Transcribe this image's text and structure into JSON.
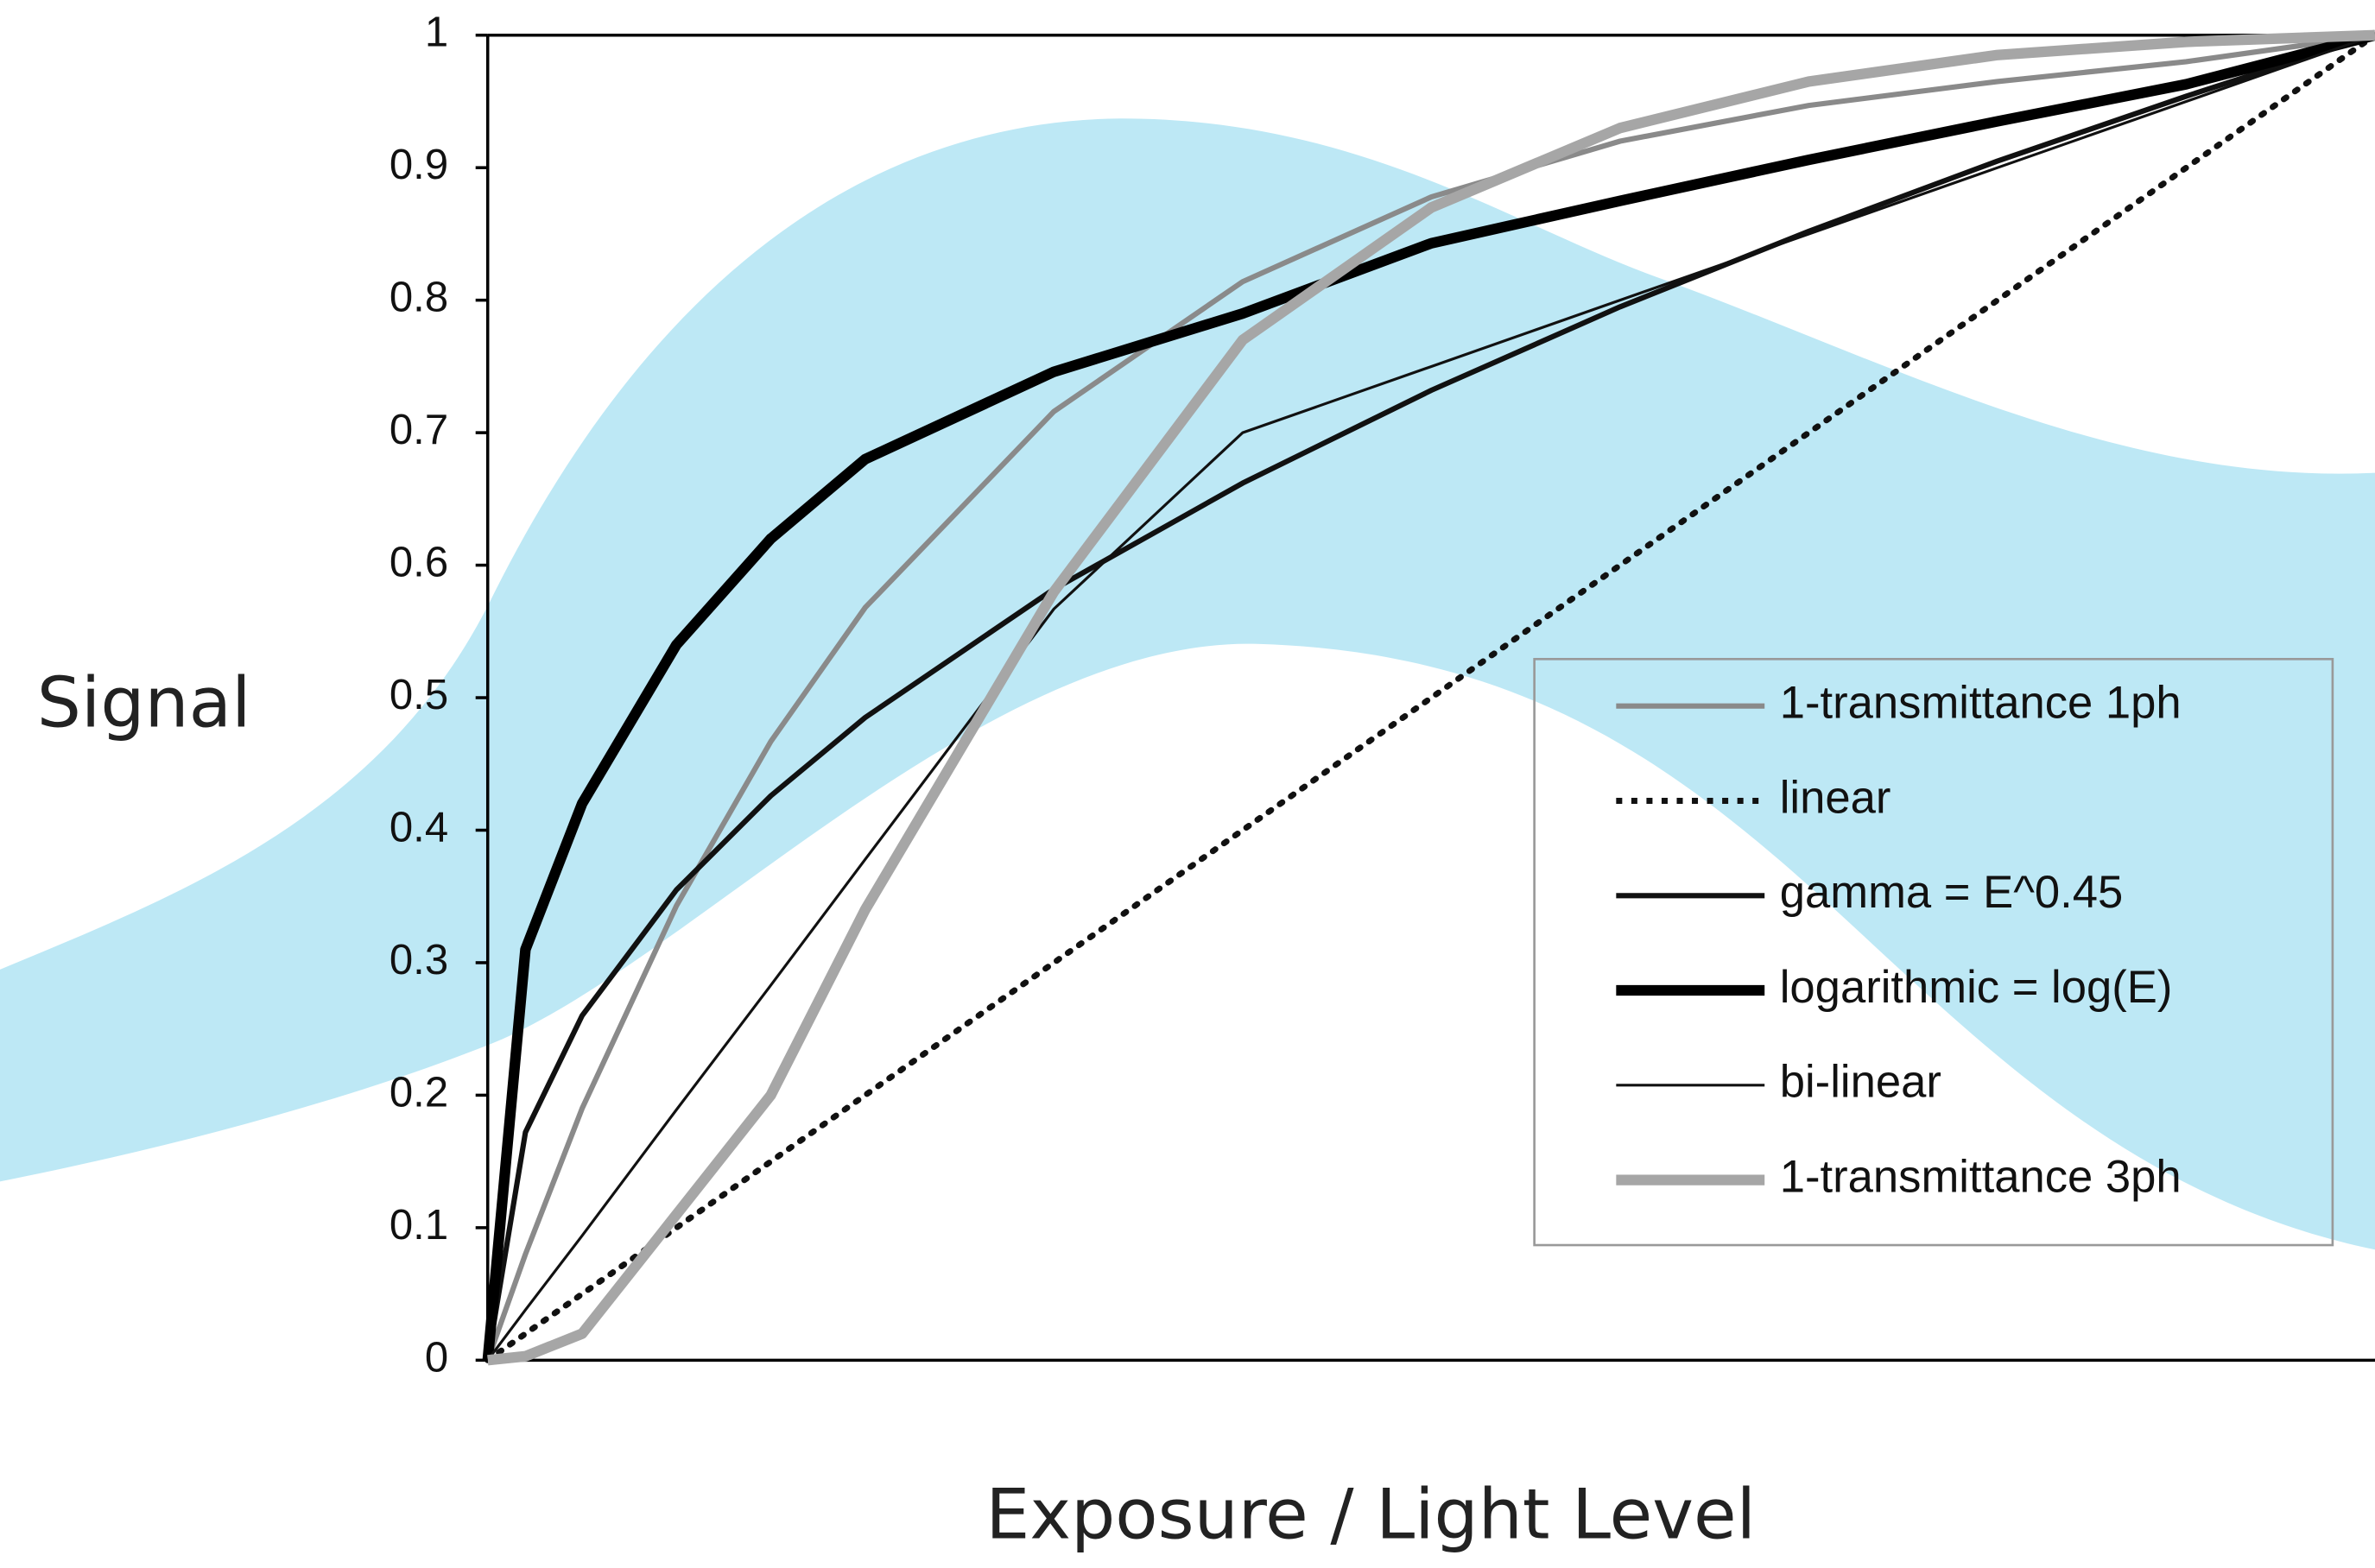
{
  "chart_data": {
    "type": "line",
    "y_label": "Signal",
    "x_label": "Exposure / Light Level",
    "x": [
      0,
      0.02,
      0.05,
      0.1,
      0.15,
      0.2,
      0.3,
      0.4,
      0.5,
      0.6,
      0.7,
      0.8,
      0.9,
      1
    ],
    "xlim": [
      0,
      1
    ],
    "ylim": [
      0,
      1
    ],
    "yticks": [
      0,
      0.1,
      0.2,
      0.3,
      0.4,
      0.5,
      0.6,
      0.7,
      0.8,
      0.9,
      1
    ],
    "series": [
      {
        "name": "1-transmittance 1ph",
        "color": "#8a8a8a",
        "values": [
          0,
          0.08,
          0.19,
          0.343,
          0.467,
          0.568,
          0.716,
          0.814,
          0.878,
          0.92,
          0.947,
          0.965,
          0.98,
          1
        ]
      },
      {
        "name": "linear",
        "color": "#111111",
        "values": [
          0,
          0.02,
          0.05,
          0.1,
          0.15,
          0.2,
          0.3,
          0.4,
          0.5,
          0.6,
          0.7,
          0.8,
          0.9,
          1
        ]
      },
      {
        "name": "gamma = E^0.45",
        "color": "#111111",
        "values": [
          0,
          0.172,
          0.26,
          0.355,
          0.426,
          0.485,
          0.582,
          0.662,
          0.732,
          0.795,
          0.852,
          0.905,
          0.954,
          1
        ]
      },
      {
        "name": "logarithmic = log(E)",
        "color": "#000000",
        "values": [
          0,
          0.31,
          0.42,
          0.54,
          0.62,
          0.68,
          0.746,
          0.79,
          0.843,
          0.875,
          0.906,
          0.935,
          0.963,
          1
        ]
      },
      {
        "name": "bi-linear",
        "color": "#111111",
        "values": [
          0,
          0.038,
          0.094,
          0.189,
          0.283,
          0.378,
          0.567,
          0.7,
          0.75,
          0.8,
          0.85,
          0.9,
          0.95,
          1
        ]
      },
      {
        "name": "1-transmittance 3ph",
        "color": "#a6a6a6",
        "values": [
          0,
          0.003,
          0.02,
          0.11,
          0.2,
          0.34,
          0.58,
          0.77,
          0.87,
          0.93,
          0.965,
          0.985,
          0.995,
          1
        ]
      }
    ]
  }
}
